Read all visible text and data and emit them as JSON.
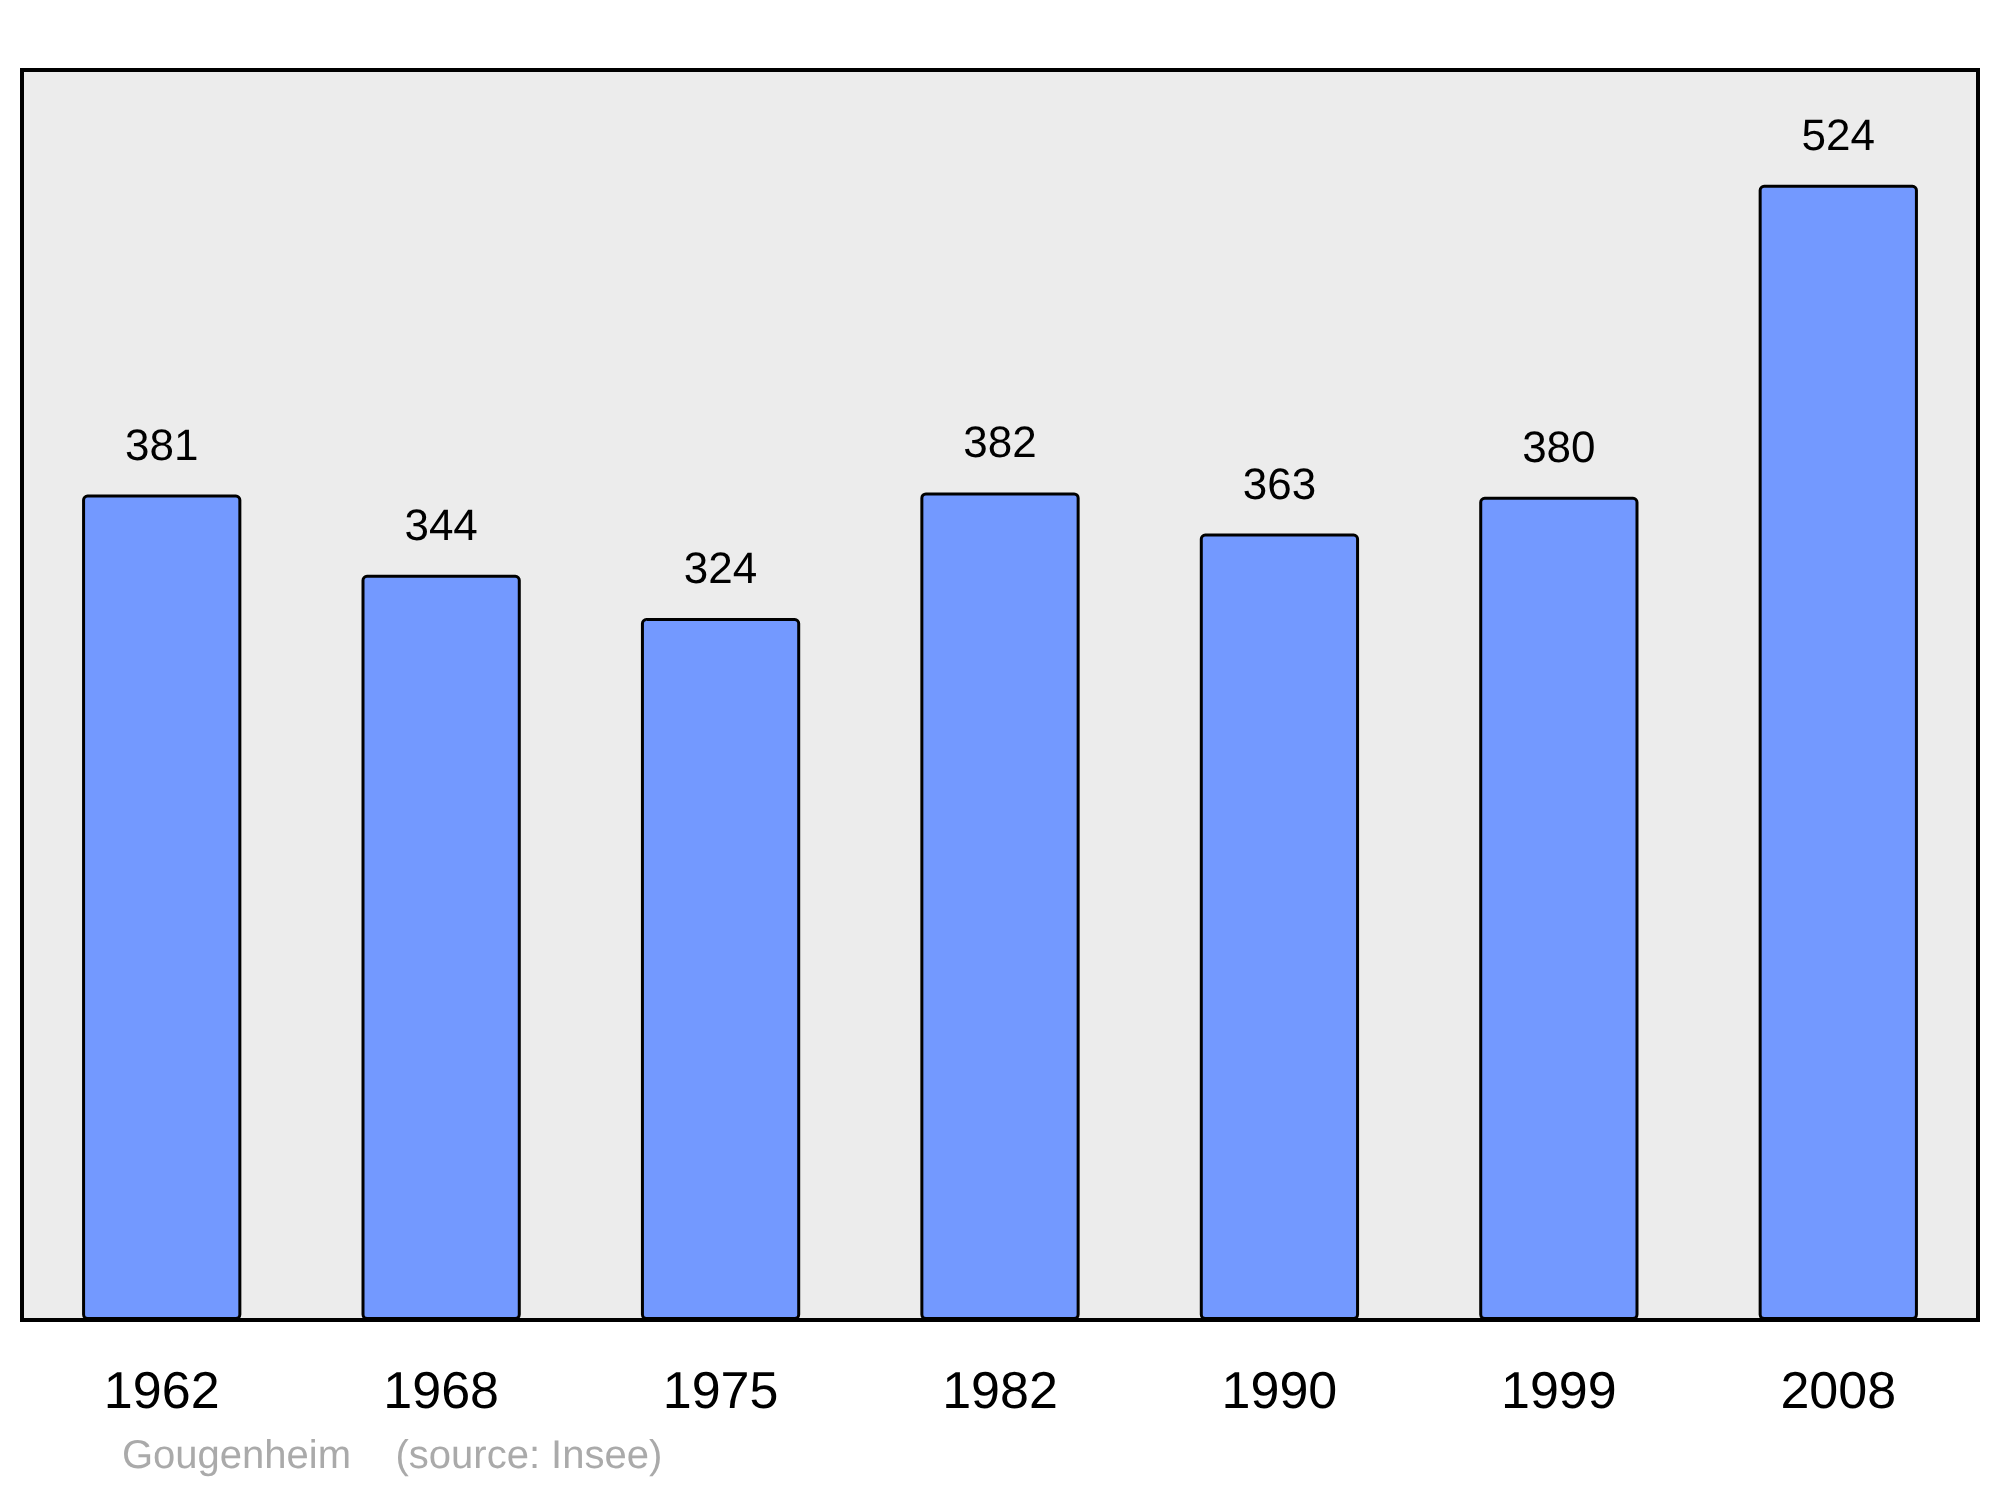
{
  "chart_data": {
    "type": "bar",
    "categories": [
      "1962",
      "1968",
      "1975",
      "1982",
      "1990",
      "1999",
      "2008"
    ],
    "values": [
      381,
      344,
      324,
      382,
      363,
      380,
      524
    ],
    "color": "#7399ff",
    "ylim": [
      0,
      577
    ],
    "tick_labels": "x",
    "data_labels": true,
    "grid": false,
    "annotations": [
      "Gougenheim    (source: Insee)"
    ]
  }
}
